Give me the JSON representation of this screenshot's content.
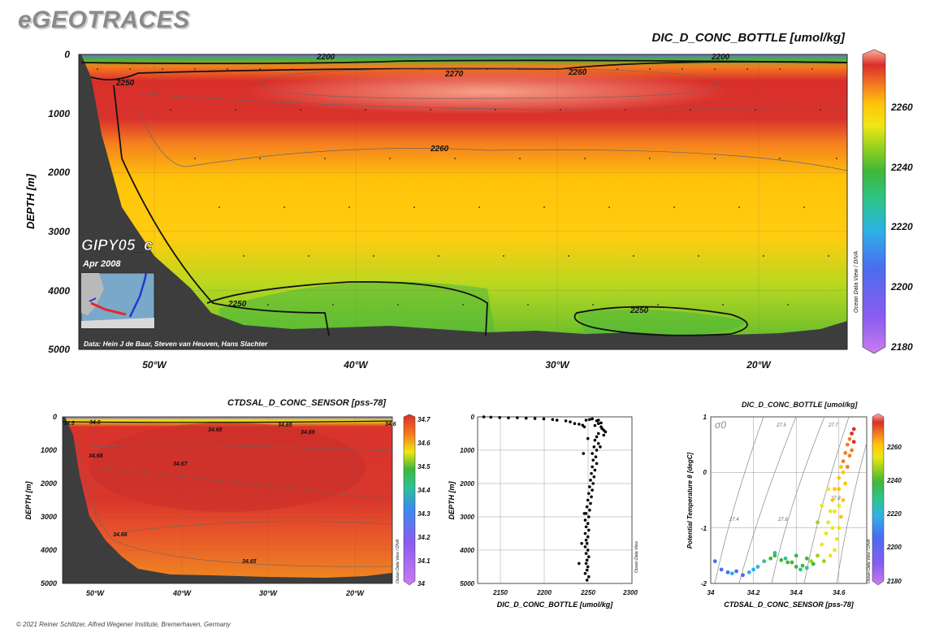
{
  "header": {
    "logo": "eGEOTRACES",
    "footer": "© 2021 Reiner Schlitzer, Alfred Wegener Institute, Bremerhaven, Germany"
  },
  "colors": {
    "land": "#3d3d3d",
    "colormap": [
      "#c97cf0",
      "#8b5cf0",
      "#4a6cf0",
      "#2eb0e8",
      "#2cc490",
      "#3fb73a",
      "#9ad21e",
      "#f0e614",
      "#ffc40a",
      "#f57e1f",
      "#d92f2a",
      "#ff9e8a"
    ]
  },
  "chart_data": [
    {
      "type": "heatmap",
      "title": "DIC_D_CONC_BOTTLE [umol/kg]",
      "ylabel": "DEPTH [m]",
      "xlabel": "",
      "x_ticks": [
        "50°W",
        "40°W",
        "30°W",
        "20°W"
      ],
      "x_tick_values": [
        -50,
        -40,
        -30,
        -20
      ],
      "xlim": [
        -54,
        -16
      ],
      "y_ticks": [
        0,
        1000,
        2000,
        3000,
        4000,
        5000
      ],
      "ylim": [
        5000,
        0
      ],
      "colorbar": {
        "ticks": [
          2260,
          2240,
          2220,
          2200,
          2180
        ],
        "range": [
          2176,
          2276
        ]
      },
      "contour_labels": [
        "2260",
        "2250",
        "2270",
        "2260",
        "2200",
        "2250",
        "2260",
        "2250",
        "2250",
        "2200"
      ],
      "cruise": "GIPY05_c",
      "date": "Apr 2008",
      "credit": "Data: Hein J de Baar, Steven van Heuven, Hans Slachter",
      "side_label": "Ocean Data View / DIVA",
      "grid": true
    },
    {
      "type": "heatmap",
      "title": "CTDSAL_D_CONC_SENSOR [pss-78]",
      "ylabel": "DEPTH [m]",
      "x_ticks": [
        "50°W",
        "40°W",
        "30°W",
        "20°W"
      ],
      "x_tick_values": [
        -50,
        -40,
        -30,
        -20
      ],
      "xlim": [
        -54,
        -16
      ],
      "y_ticks": [
        0,
        1000,
        2000,
        3000,
        4000,
        5000
      ],
      "ylim": [
        5000,
        0
      ],
      "colorbar": {
        "ticks": [
          "34.7",
          "34.6",
          "34.5",
          "34.4",
          "34.3",
          "34.2",
          "34.1",
          "34"
        ],
        "range": [
          34,
          34.72
        ]
      },
      "contour_labels": [
        "34.5",
        "34.6",
        "34.68",
        "34.65",
        "34.69",
        "34.68",
        "34.67",
        "34.66",
        "34.65",
        "34.6"
      ],
      "side_label": "Ocean Data View / DIVA",
      "grid": true
    },
    {
      "type": "scatter",
      "title": "",
      "xlabel": "DIC_D_CONC_BOTTLE [umol/kg]",
      "ylabel": "DEPTH [m]",
      "x_ticks": [
        2150,
        2200,
        2250,
        2300
      ],
      "xlim": [
        2125,
        2300
      ],
      "y_ticks": [
        0,
        1000,
        2000,
        3000,
        4000,
        5000
      ],
      "ylim": [
        5000,
        0
      ],
      "side_label": "Ocean Data View",
      "grid": true,
      "points": [
        [
          2132,
          0
        ],
        [
          2140,
          10
        ],
        [
          2150,
          20
        ],
        [
          2160,
          30
        ],
        [
          2170,
          25
        ],
        [
          2180,
          40
        ],
        [
          2190,
          50
        ],
        [
          2200,
          60
        ],
        [
          2210,
          80
        ],
        [
          2215,
          100
        ],
        [
          2225,
          120
        ],
        [
          2230,
          150
        ],
        [
          2235,
          200
        ],
        [
          2240,
          220
        ],
        [
          2244,
          250
        ],
        [
          2246,
          300
        ],
        [
          2248,
          100
        ],
        [
          2252,
          80
        ],
        [
          2255,
          60
        ],
        [
          2260,
          120
        ],
        [
          2262,
          200
        ],
        [
          2265,
          300
        ],
        [
          2268,
          400
        ],
        [
          2270,
          450
        ],
        [
          2266,
          350
        ],
        [
          2258,
          260
        ],
        [
          2262,
          500
        ],
        [
          2260,
          600
        ],
        [
          2258,
          700
        ],
        [
          2262,
          800
        ],
        [
          2257,
          900
        ],
        [
          2260,
          1000
        ],
        [
          2255,
          1100
        ],
        [
          2259,
          1200
        ],
        [
          2256,
          1300
        ],
        [
          2260,
          1400
        ],
        [
          2255,
          1500
        ],
        [
          2258,
          1600
        ],
        [
          2254,
          1700
        ],
        [
          2257,
          1800
        ],
        [
          2253,
          1900
        ],
        [
          2256,
          2000
        ],
        [
          2252,
          2100
        ],
        [
          2255,
          2200
        ],
        [
          2251,
          2300
        ],
        [
          2254,
          2400
        ],
        [
          2250,
          2500
        ],
        [
          2253,
          2600
        ],
        [
          2249,
          2700
        ],
        [
          2252,
          2800
        ],
        [
          2248,
          2900
        ],
        [
          2251,
          3000
        ],
        [
          2247,
          3100
        ],
        [
          2250,
          3200
        ],
        [
          2248,
          3300
        ],
        [
          2251,
          3400
        ],
        [
          2247,
          3500
        ],
        [
          2250,
          3600
        ],
        [
          2248,
          3700
        ],
        [
          2249,
          3800
        ],
        [
          2247,
          3900
        ],
        [
          2250,
          4000
        ],
        [
          2248,
          4100
        ],
        [
          2251,
          4200
        ],
        [
          2249,
          4300
        ],
        [
          2248,
          4400
        ],
        [
          2250,
          4500
        ],
        [
          2249,
          4600
        ],
        [
          2247,
          4700
        ],
        [
          2251,
          4800
        ],
        [
          2249,
          4900
        ],
        [
          2240,
          4400
        ],
        [
          2243,
          3800
        ],
        [
          2246,
          2900
        ],
        [
          2262,
          100
        ],
        [
          2265,
          180
        ],
        [
          2250,
          650
        ],
        [
          2245,
          1100
        ],
        [
          2268,
          550
        ],
        [
          2264,
          900
        ]
      ]
    },
    {
      "type": "scatter",
      "title": "DIC_D_CONC_BOTTLE [umol/kg]",
      "xlabel": "CTDSAL_D_CONC_SENSOR [pss-78]",
      "ylabel": "Potential Temperature θ [degC]",
      "x_ticks": [
        "34",
        "34.2",
        "34.4",
        "34.6"
      ],
      "x_tick_values": [
        34,
        34.2,
        34.4,
        34.6
      ],
      "xlim": [
        34,
        34.73
      ],
      "y_ticks": [
        "1",
        "0",
        "-1",
        "-2"
      ],
      "y_tick_values": [
        1,
        0,
        -1,
        -2
      ],
      "ylim": [
        -2,
        1
      ],
      "isopycnals": [
        "27.4",
        "27.5",
        "27.6",
        "27.7",
        "27.8"
      ],
      "sigma_symbol": "σ0",
      "colorbar": {
        "ticks": [
          2260,
          2240,
          2220,
          2200,
          2180
        ],
        "range": [
          2176,
          2276
        ]
      },
      "side_label": "Ocean Data View / DIVA",
      "grid": true,
      "points": [
        [
          34.02,
          -1.6,
          2200
        ],
        [
          34.05,
          -1.75,
          2198
        ],
        [
          34.08,
          -1.8,
          2202
        ],
        [
          34.1,
          -1.82,
          2205
        ],
        [
          34.12,
          -1.78,
          2200
        ],
        [
          34.15,
          -1.85,
          2195
        ],
        [
          34.18,
          -1.8,
          2204
        ],
        [
          34.2,
          -1.75,
          2210
        ],
        [
          34.22,
          -1.7,
          2212
        ],
        [
          34.25,
          -1.6,
          2218
        ],
        [
          34.28,
          -1.55,
          2222
        ],
        [
          34.3,
          -1.5,
          2225
        ],
        [
          34.33,
          -1.58,
          2228
        ],
        [
          34.36,
          -1.62,
          2230
        ],
        [
          34.4,
          -1.7,
          2222
        ],
        [
          34.42,
          -1.75,
          2218
        ],
        [
          34.45,
          -1.72,
          2215
        ],
        [
          34.47,
          -1.6,
          2232
        ],
        [
          34.5,
          -1.5,
          2238
        ],
        [
          34.52,
          -1.3,
          2242
        ],
        [
          34.54,
          -1.1,
          2245
        ],
        [
          34.55,
          -0.9,
          2246
        ],
        [
          34.56,
          -0.7,
          2248
        ],
        [
          34.57,
          -0.5,
          2250
        ],
        [
          34.58,
          -0.3,
          2252
        ],
        [
          34.6,
          -0.1,
          2254
        ],
        [
          34.61,
          0.1,
          2256
        ],
        [
          34.62,
          0.2,
          2258
        ],
        [
          34.63,
          0.35,
          2260
        ],
        [
          34.64,
          0.5,
          2263
        ],
        [
          34.65,
          0.6,
          2266
        ],
        [
          34.66,
          0.7,
          2268
        ],
        [
          34.67,
          0.78,
          2270
        ],
        [
          34.65,
          0.3,
          2262
        ],
        [
          34.64,
          0.1,
          2260
        ],
        [
          34.63,
          -0.2,
          2256
        ],
        [
          34.62,
          -0.5,
          2252
        ],
        [
          34.61,
          -0.8,
          2250
        ],
        [
          34.6,
          -1.0,
          2248
        ],
        [
          34.59,
          -1.2,
          2246
        ],
        [
          34.58,
          -1.4,
          2244
        ],
        [
          34.56,
          -1.5,
          2240
        ],
        [
          34.53,
          -1.6,
          2236
        ],
        [
          34.48,
          -1.65,
          2230
        ],
        [
          34.43,
          -1.68,
          2226
        ],
        [
          34.38,
          -1.62,
          2224
        ],
        [
          34.35,
          -1.55,
          2220
        ],
        [
          34.3,
          -1.45,
          2216
        ],
        [
          34.6,
          -0.6,
          2248
        ],
        [
          34.55,
          -0.3,
          2244
        ],
        [
          34.52,
          -0.6,
          2240
        ],
        [
          34.5,
          -0.9,
          2238
        ],
        [
          34.66,
          0.4,
          2265
        ],
        [
          34.67,
          0.55,
          2268
        ],
        [
          34.62,
          0.0,
          2254
        ],
        [
          34.6,
          -0.3,
          2250
        ],
        [
          34.58,
          -0.7,
          2246
        ],
        [
          34.57,
          -1.0,
          2244
        ],
        [
          34.45,
          -1.55,
          2228
        ],
        [
          34.4,
          -1.5,
          2226
        ]
      ]
    }
  ]
}
